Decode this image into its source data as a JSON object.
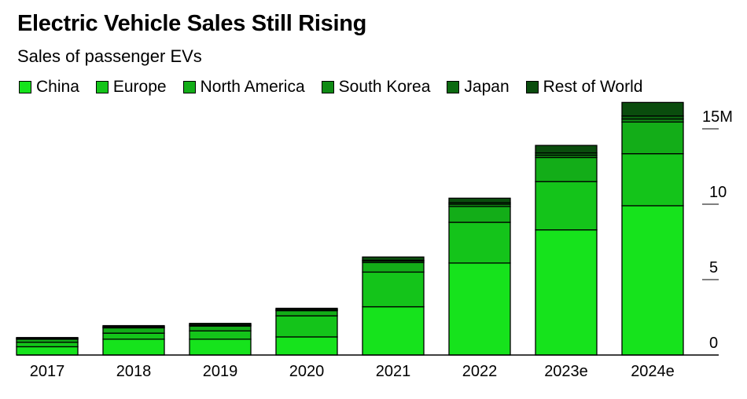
{
  "chart_data": {
    "type": "bar",
    "stacked": true,
    "title": "Electric Vehicle Sales Still Rising",
    "subtitle": "Sales of passenger EVs",
    "xlabel": "",
    "ylabel": "",
    "unit": "millions",
    "ylim": [
      0,
      17
    ],
    "yticks": [
      0,
      5,
      10,
      15
    ],
    "ytick_labels": [
      "0",
      "5",
      "10",
      "15M"
    ],
    "categories": [
      "2017",
      "2018",
      "2019",
      "2020",
      "2021",
      "2022",
      "2023e",
      "2024e"
    ],
    "series": [
      {
        "name": "China",
        "color": "#16e31c",
        "values": [
          0.55,
          1.05,
          1.05,
          1.2,
          3.2,
          6.1,
          8.3,
          9.9
        ]
      },
      {
        "name": "Europe",
        "color": "#14c41a",
        "values": [
          0.3,
          0.4,
          0.55,
          1.4,
          2.3,
          2.7,
          3.2,
          3.45
        ]
      },
      {
        "name": "North America",
        "color": "#13ad18",
        "values": [
          0.2,
          0.35,
          0.32,
          0.34,
          0.63,
          1.05,
          1.6,
          2.1
        ]
      },
      {
        "name": "South Korea",
        "color": "#0f8a14",
        "values": [
          0.02,
          0.03,
          0.05,
          0.05,
          0.1,
          0.15,
          0.15,
          0.2
        ]
      },
      {
        "name": "Japan",
        "color": "#0c6a11",
        "values": [
          0.05,
          0.05,
          0.04,
          0.03,
          0.05,
          0.1,
          0.15,
          0.2
        ]
      },
      {
        "name": "Rest of World",
        "color": "#0a4c0d",
        "values": [
          0.04,
          0.07,
          0.09,
          0.08,
          0.22,
          0.3,
          0.5,
          0.9
        ]
      }
    ],
    "legend_position": "top-left",
    "grid": false
  }
}
